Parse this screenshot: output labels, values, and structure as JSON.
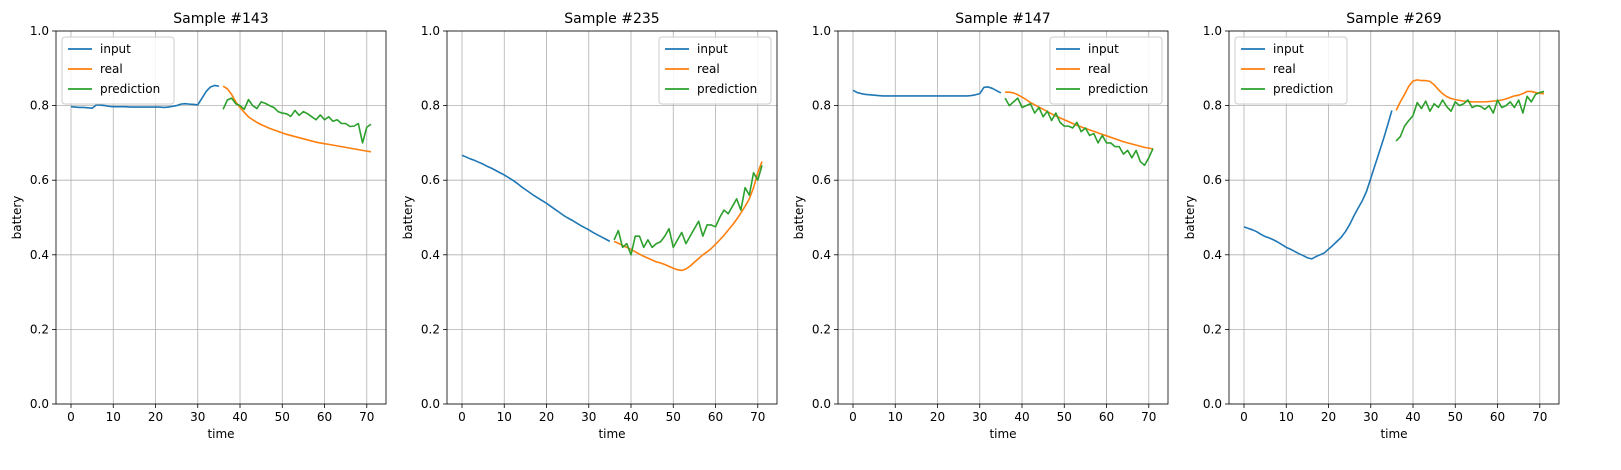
{
  "chart_data": [
    {
      "type": "line",
      "title": "Sample #143",
      "xlabel": "time",
      "ylabel": "battery",
      "xlim": [
        -3.55,
        74.55
      ],
      "ylim": [
        0,
        1
      ],
      "xticks": [
        0,
        10,
        20,
        30,
        40,
        50,
        60,
        70
      ],
      "yticks": [
        0.0,
        0.2,
        0.4,
        0.6,
        0.8,
        1.0
      ],
      "grid": true,
      "legend_position": "upper left",
      "series": [
        {
          "name": "input",
          "color": "#1f77b4",
          "x_start": 0,
          "values": [
            0.797,
            0.796,
            0.795,
            0.795,
            0.794,
            0.793,
            0.802,
            0.801,
            0.8,
            0.798,
            0.797,
            0.797,
            0.797,
            0.797,
            0.796,
            0.796,
            0.796,
            0.796,
            0.796,
            0.796,
            0.796,
            0.796,
            0.795,
            0.796,
            0.798,
            0.8,
            0.804,
            0.805,
            0.804,
            0.803,
            0.802,
            0.82,
            0.838,
            0.85,
            0.854,
            0.852
          ]
        },
        {
          "name": "real",
          "color": "#ff7f0e",
          "x_start": 36,
          "values": [
            0.852,
            0.845,
            0.83,
            0.81,
            0.795,
            0.782,
            0.77,
            0.762,
            0.755,
            0.749,
            0.744,
            0.739,
            0.735,
            0.731,
            0.727,
            0.723,
            0.72,
            0.717,
            0.714,
            0.711,
            0.708,
            0.705,
            0.702,
            0.7,
            0.698,
            0.696,
            0.694,
            0.692,
            0.69,
            0.688,
            0.686,
            0.684,
            0.682,
            0.68,
            0.678,
            0.676
          ]
        },
        {
          "name": "prediction",
          "color": "#2ca02c",
          "x_start": 36,
          "values": [
            0.79,
            0.815,
            0.82,
            0.805,
            0.8,
            0.79,
            0.816,
            0.8,
            0.792,
            0.81,
            0.806,
            0.8,
            0.795,
            0.784,
            0.78,
            0.778,
            0.771,
            0.787,
            0.774,
            0.784,
            0.778,
            0.77,
            0.762,
            0.775,
            0.762,
            0.77,
            0.758,
            0.762,
            0.752,
            0.752,
            0.744,
            0.745,
            0.752,
            0.7,
            0.742,
            0.75
          ]
        }
      ]
    },
    {
      "type": "line",
      "title": "Sample #235",
      "xlabel": "time",
      "ylabel": "battery",
      "xlim": [
        -3.55,
        74.55
      ],
      "ylim": [
        0,
        1
      ],
      "xticks": [
        0,
        10,
        20,
        30,
        40,
        50,
        60,
        70
      ],
      "yticks": [
        0.0,
        0.2,
        0.4,
        0.6,
        0.8,
        1.0
      ],
      "grid": true,
      "legend_position": "upper right",
      "series": [
        {
          "name": "input",
          "color": "#1f77b4",
          "x_start": 0,
          "values": [
            0.667,
            0.662,
            0.657,
            0.653,
            0.648,
            0.643,
            0.637,
            0.632,
            0.626,
            0.62,
            0.614,
            0.607,
            0.6,
            0.592,
            0.583,
            0.575,
            0.567,
            0.559,
            0.552,
            0.545,
            0.538,
            0.53,
            0.522,
            0.514,
            0.506,
            0.499,
            0.493,
            0.486,
            0.479,
            0.473,
            0.467,
            0.46,
            0.454,
            0.448,
            0.442,
            0.436
          ]
        },
        {
          "name": "real",
          "color": "#ff7f0e",
          "x_start": 36,
          "values": [
            0.436,
            0.431,
            0.425,
            0.42,
            0.414,
            0.408,
            0.402,
            0.396,
            0.391,
            0.386,
            0.381,
            0.378,
            0.374,
            0.369,
            0.364,
            0.36,
            0.358,
            0.362,
            0.37,
            0.38,
            0.39,
            0.4,
            0.408,
            0.417,
            0.428,
            0.44,
            0.452,
            0.466,
            0.48,
            0.495,
            0.512,
            0.53,
            0.55,
            0.58,
            0.62,
            0.65
          ]
        },
        {
          "name": "prediction",
          "color": "#2ca02c",
          "x_start": 36,
          "values": [
            0.44,
            0.465,
            0.42,
            0.43,
            0.4,
            0.45,
            0.45,
            0.42,
            0.44,
            0.42,
            0.43,
            0.435,
            0.45,
            0.47,
            0.42,
            0.44,
            0.46,
            0.43,
            0.45,
            0.47,
            0.49,
            0.45,
            0.48,
            0.48,
            0.475,
            0.5,
            0.52,
            0.51,
            0.53,
            0.55,
            0.52,
            0.58,
            0.56,
            0.62,
            0.6,
            0.64
          ]
        }
      ]
    },
    {
      "type": "line",
      "title": "Sample #147",
      "xlabel": "time",
      "ylabel": "battery",
      "xlim": [
        -3.55,
        74.55
      ],
      "ylim": [
        0,
        1
      ],
      "xticks": [
        0,
        10,
        20,
        30,
        40,
        50,
        60,
        70
      ],
      "yticks": [
        0.0,
        0.2,
        0.4,
        0.6,
        0.8,
        1.0
      ],
      "grid": true,
      "legend_position": "upper right",
      "series": [
        {
          "name": "input",
          "color": "#1f77b4",
          "x_start": 0,
          "values": [
            0.841,
            0.835,
            0.832,
            0.83,
            0.829,
            0.828,
            0.827,
            0.826,
            0.826,
            0.826,
            0.826,
            0.826,
            0.826,
            0.826,
            0.826,
            0.826,
            0.826,
            0.826,
            0.826,
            0.826,
            0.826,
            0.826,
            0.826,
            0.826,
            0.826,
            0.826,
            0.826,
            0.826,
            0.827,
            0.829,
            0.832,
            0.849,
            0.85,
            0.846,
            0.84,
            0.834
          ]
        },
        {
          "name": "real",
          "color": "#ff7f0e",
          "x_start": 36,
          "values": [
            0.836,
            0.836,
            0.834,
            0.829,
            0.823,
            0.816,
            0.808,
            0.802,
            0.796,
            0.79,
            0.784,
            0.778,
            0.772,
            0.767,
            0.762,
            0.757,
            0.752,
            0.747,
            0.743,
            0.739,
            0.735,
            0.731,
            0.727,
            0.723,
            0.719,
            0.715,
            0.711,
            0.707,
            0.703,
            0.7,
            0.697,
            0.694,
            0.691,
            0.688,
            0.686,
            0.684
          ]
        },
        {
          "name": "prediction",
          "color": "#2ca02c",
          "x_start": 36,
          "values": [
            0.82,
            0.8,
            0.81,
            0.82,
            0.795,
            0.8,
            0.805,
            0.78,
            0.795,
            0.77,
            0.785,
            0.76,
            0.78,
            0.755,
            0.745,
            0.745,
            0.74,
            0.755,
            0.73,
            0.74,
            0.72,
            0.725,
            0.7,
            0.72,
            0.7,
            0.7,
            0.69,
            0.69,
            0.67,
            0.68,
            0.66,
            0.68,
            0.65,
            0.64,
            0.66,
            0.685
          ]
        }
      ]
    },
    {
      "type": "line",
      "title": "Sample #269",
      "xlabel": "time",
      "ylabel": "battery",
      "xlim": [
        -3.55,
        74.55
      ],
      "ylim": [
        0,
        1
      ],
      "xticks": [
        0,
        10,
        20,
        30,
        40,
        50,
        60,
        70
      ],
      "yticks": [
        0.0,
        0.2,
        0.4,
        0.6,
        0.8,
        1.0
      ],
      "grid": true,
      "legend_position": "upper left",
      "series": [
        {
          "name": "input",
          "color": "#1f77b4",
          "x_start": 0,
          "values": [
            0.475,
            0.471,
            0.467,
            0.462,
            0.455,
            0.449,
            0.445,
            0.44,
            0.434,
            0.427,
            0.42,
            0.415,
            0.409,
            0.403,
            0.398,
            0.392,
            0.389,
            0.395,
            0.4,
            0.405,
            0.415,
            0.425,
            0.436,
            0.447,
            0.462,
            0.481,
            0.504,
            0.525,
            0.545,
            0.57,
            0.605,
            0.64,
            0.675,
            0.71,
            0.748,
            0.787
          ]
        },
        {
          "name": "real",
          "color": "#ff7f0e",
          "x_start": 36,
          "values": [
            0.787,
            0.81,
            0.83,
            0.852,
            0.866,
            0.869,
            0.867,
            0.867,
            0.865,
            0.856,
            0.843,
            0.832,
            0.824,
            0.819,
            0.816,
            0.814,
            0.812,
            0.811,
            0.81,
            0.81,
            0.81,
            0.81,
            0.811,
            0.812,
            0.813,
            0.815,
            0.818,
            0.822,
            0.826,
            0.828,
            0.832,
            0.838,
            0.838,
            0.835,
            0.833,
            0.832
          ]
        },
        {
          "name": "prediction",
          "color": "#2ca02c",
          "x_start": 36,
          "values": [
            0.705,
            0.717,
            0.745,
            0.76,
            0.773,
            0.808,
            0.792,
            0.812,
            0.785,
            0.805,
            0.795,
            0.815,
            0.797,
            0.785,
            0.81,
            0.8,
            0.805,
            0.815,
            0.795,
            0.8,
            0.798,
            0.79,
            0.8,
            0.78,
            0.815,
            0.795,
            0.8,
            0.81,
            0.795,
            0.815,
            0.78,
            0.825,
            0.81,
            0.83,
            0.835,
            0.838
          ]
        }
      ]
    }
  ]
}
